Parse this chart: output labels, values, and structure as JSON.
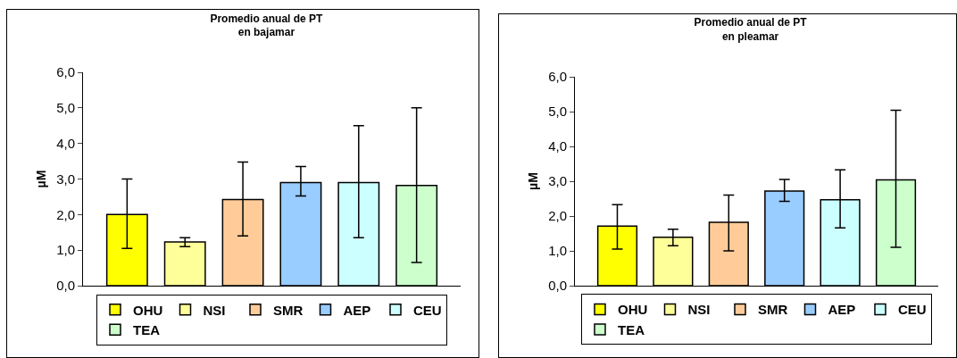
{
  "chart_data": [
    {
      "type": "bar",
      "title": "Promedio anual de PT\nen bajamar",
      "ylabel": "µM",
      "categories": [
        null
      ],
      "ylim": [
        0,
        6
      ],
      "yticks": [
        {
          "value": 0,
          "label": "0,0"
        },
        {
          "value": 1,
          "label": "1,0"
        },
        {
          "value": 2,
          "label": "2,0"
        },
        {
          "value": 3,
          "label": "3,0"
        },
        {
          "value": 4,
          "label": "4,0"
        },
        {
          "value": 5,
          "label": "5,0"
        },
        {
          "value": 6,
          "label": "6,0"
        }
      ],
      "grid": false,
      "legend": "bottom",
      "tick_labels": "y",
      "series": [
        {
          "name": "OHU",
          "color": "#ffff00",
          "values": [
            2.0
          ],
          "errors": [
            [
              1.05,
              3.0
            ]
          ]
        },
        {
          "name": "NSI",
          "color": "#ffff99",
          "values": [
            1.23
          ],
          "errors": [
            [
              1.1,
              1.35
            ]
          ]
        },
        {
          "name": "SMR",
          "color": "#ffcc99",
          "values": [
            2.42
          ],
          "errors": [
            [
              1.4,
              3.48
            ]
          ]
        },
        {
          "name": "AEP",
          "color": "#99ccff",
          "values": [
            2.9
          ],
          "errors": [
            [
              2.52,
              3.35
            ]
          ]
        },
        {
          "name": "CEU",
          "color": "#ccffff",
          "values": [
            2.9
          ],
          "errors": [
            [
              1.35,
              4.5
            ]
          ]
        },
        {
          "name": "TEA",
          "color": "#ccffcc",
          "values": [
            2.82
          ],
          "errors": [
            [
              0.65,
              5.0
            ]
          ]
        }
      ]
    },
    {
      "type": "bar",
      "title": "Promedio anual de PT\nen pleamar",
      "ylabel": "µM",
      "categories": [
        null
      ],
      "ylim": [
        0,
        6
      ],
      "yticks": [
        {
          "value": 0,
          "label": "0,0"
        },
        {
          "value": 1,
          "label": "1,0"
        },
        {
          "value": 2,
          "label": "2,0"
        },
        {
          "value": 3,
          "label": "3,0"
        },
        {
          "value": 4,
          "label": "4,0"
        },
        {
          "value": 5,
          "label": "5,0"
        },
        {
          "value": 6,
          "label": "6,0"
        }
      ],
      "grid": false,
      "legend": "bottom",
      "tick_labels": "y",
      "series": [
        {
          "name": "OHU",
          "color": "#ffff00",
          "values": [
            1.71
          ],
          "errors": [
            [
              1.05,
              2.33
            ]
          ]
        },
        {
          "name": "NSI",
          "color": "#ffff99",
          "values": [
            1.39
          ],
          "errors": [
            [
              1.15,
              1.62
            ]
          ]
        },
        {
          "name": "SMR",
          "color": "#ffcc99",
          "values": [
            1.82
          ],
          "errors": [
            [
              1.0,
              2.6
            ]
          ]
        },
        {
          "name": "AEP",
          "color": "#99ccff",
          "values": [
            2.72
          ],
          "errors": [
            [
              2.42,
              3.05
            ]
          ]
        },
        {
          "name": "CEU",
          "color": "#ccffff",
          "values": [
            2.47
          ],
          "errors": [
            [
              1.66,
              3.33
            ]
          ]
        },
        {
          "name": "TEA",
          "color": "#ccffcc",
          "values": [
            3.04
          ],
          "errors": [
            [
              1.1,
              5.04
            ]
          ]
        }
      ]
    }
  ]
}
